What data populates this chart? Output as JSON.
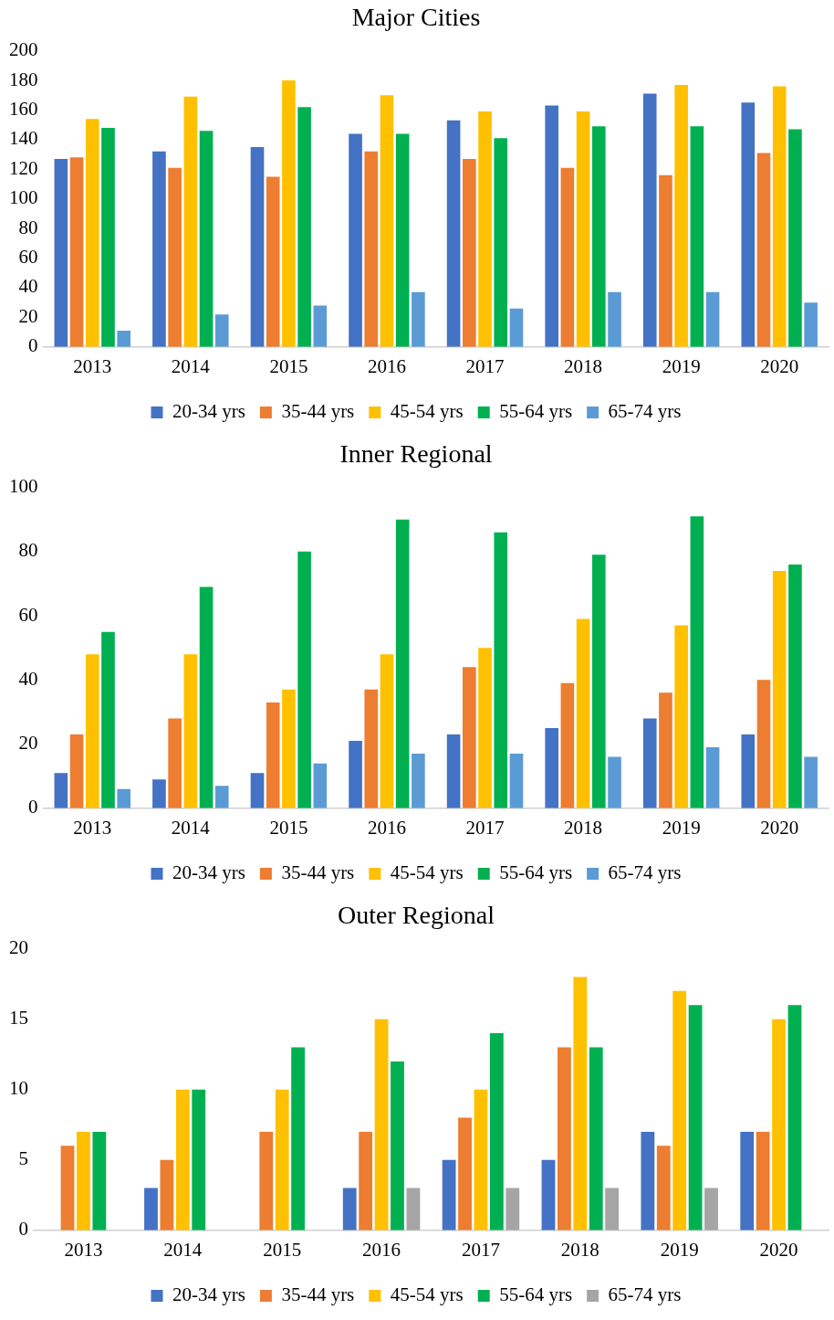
{
  "chart_data": [
    {
      "type": "bar",
      "title": "Major Cities",
      "categories": [
        "2013",
        "2014",
        "2015",
        "2016",
        "2017",
        "2018",
        "2019",
        "2020"
      ],
      "series": [
        {
          "name": "20-34 yrs",
          "color": "#4472c4",
          "values": [
            127,
            132,
            135,
            144,
            153,
            163,
            171,
            165
          ]
        },
        {
          "name": "35-44 yrs",
          "color": "#ed7d31",
          "values": [
            128,
            121,
            115,
            132,
            127,
            121,
            116,
            131
          ]
        },
        {
          "name": "45-54 yrs",
          "color": "#ffc000",
          "values": [
            154,
            169,
            180,
            170,
            159,
            159,
            177,
            176
          ]
        },
        {
          "name": "55-64 yrs",
          "color": "#00b050",
          "values": [
            148,
            146,
            162,
            144,
            141,
            149,
            149,
            147
          ]
        },
        {
          "name": "65-74 yrs",
          "color": "#5b9bd5",
          "values": [
            11,
            22,
            28,
            37,
            26,
            37,
            37,
            30
          ]
        }
      ],
      "ylim": [
        0,
        200
      ],
      "yticks": [
        0,
        20,
        40,
        60,
        80,
        100,
        120,
        140,
        160,
        180,
        200
      ],
      "grid": false,
      "legend": "bottom"
    },
    {
      "type": "bar",
      "title": "Inner Regional",
      "categories": [
        "2013",
        "2014",
        "2015",
        "2016",
        "2017",
        "2018",
        "2019",
        "2020"
      ],
      "series": [
        {
          "name": "20-34 yrs",
          "color": "#4472c4",
          "values": [
            11,
            9,
            11,
            21,
            23,
            25,
            28,
            23
          ]
        },
        {
          "name": "35-44 yrs",
          "color": "#ed7d31",
          "values": [
            23,
            28,
            33,
            37,
            44,
            39,
            36,
            40
          ]
        },
        {
          "name": "45-54 yrs",
          "color": "#ffc000",
          "values": [
            48,
            48,
            37,
            48,
            50,
            59,
            57,
            74
          ]
        },
        {
          "name": "55-64 yrs",
          "color": "#00b050",
          "values": [
            55,
            69,
            80,
            90,
            86,
            79,
            91,
            76
          ]
        },
        {
          "name": "65-74 yrs",
          "color": "#5b9bd5",
          "values": [
            6,
            7,
            14,
            17,
            17,
            16,
            19,
            16
          ]
        }
      ],
      "ylim": [
        0,
        100
      ],
      "yticks": [
        0,
        20,
        40,
        60,
        80,
        100
      ],
      "grid": false,
      "legend": "bottom"
    },
    {
      "type": "bar",
      "title": "Outer Regional",
      "categories": [
        "2013",
        "2014",
        "2015",
        "2016",
        "2017",
        "2018",
        "2019",
        "2020"
      ],
      "series": [
        {
          "name": "20-34 yrs",
          "color": "#4472c4",
          "values": [
            null,
            3,
            null,
            3,
            5,
            5,
            7,
            7
          ]
        },
        {
          "name": "35-44 yrs",
          "color": "#ed7d31",
          "values": [
            6,
            5,
            7,
            7,
            8,
            13,
            6,
            7
          ]
        },
        {
          "name": "45-54 yrs",
          "color": "#ffc000",
          "values": [
            7,
            10,
            10,
            15,
            10,
            18,
            17,
            15
          ]
        },
        {
          "name": "55-64 yrs",
          "color": "#00b050",
          "values": [
            7,
            10,
            13,
            12,
            14,
            13,
            16,
            16
          ]
        },
        {
          "name": "65-74 yrs",
          "color": "#a5a5a5",
          "values": [
            null,
            null,
            null,
            3,
            3,
            3,
            3,
            null
          ]
        }
      ],
      "ylim": [
        0,
        20
      ],
      "yticks": [
        0,
        5,
        10,
        15,
        20
      ],
      "grid": false,
      "legend": "bottom"
    }
  ]
}
